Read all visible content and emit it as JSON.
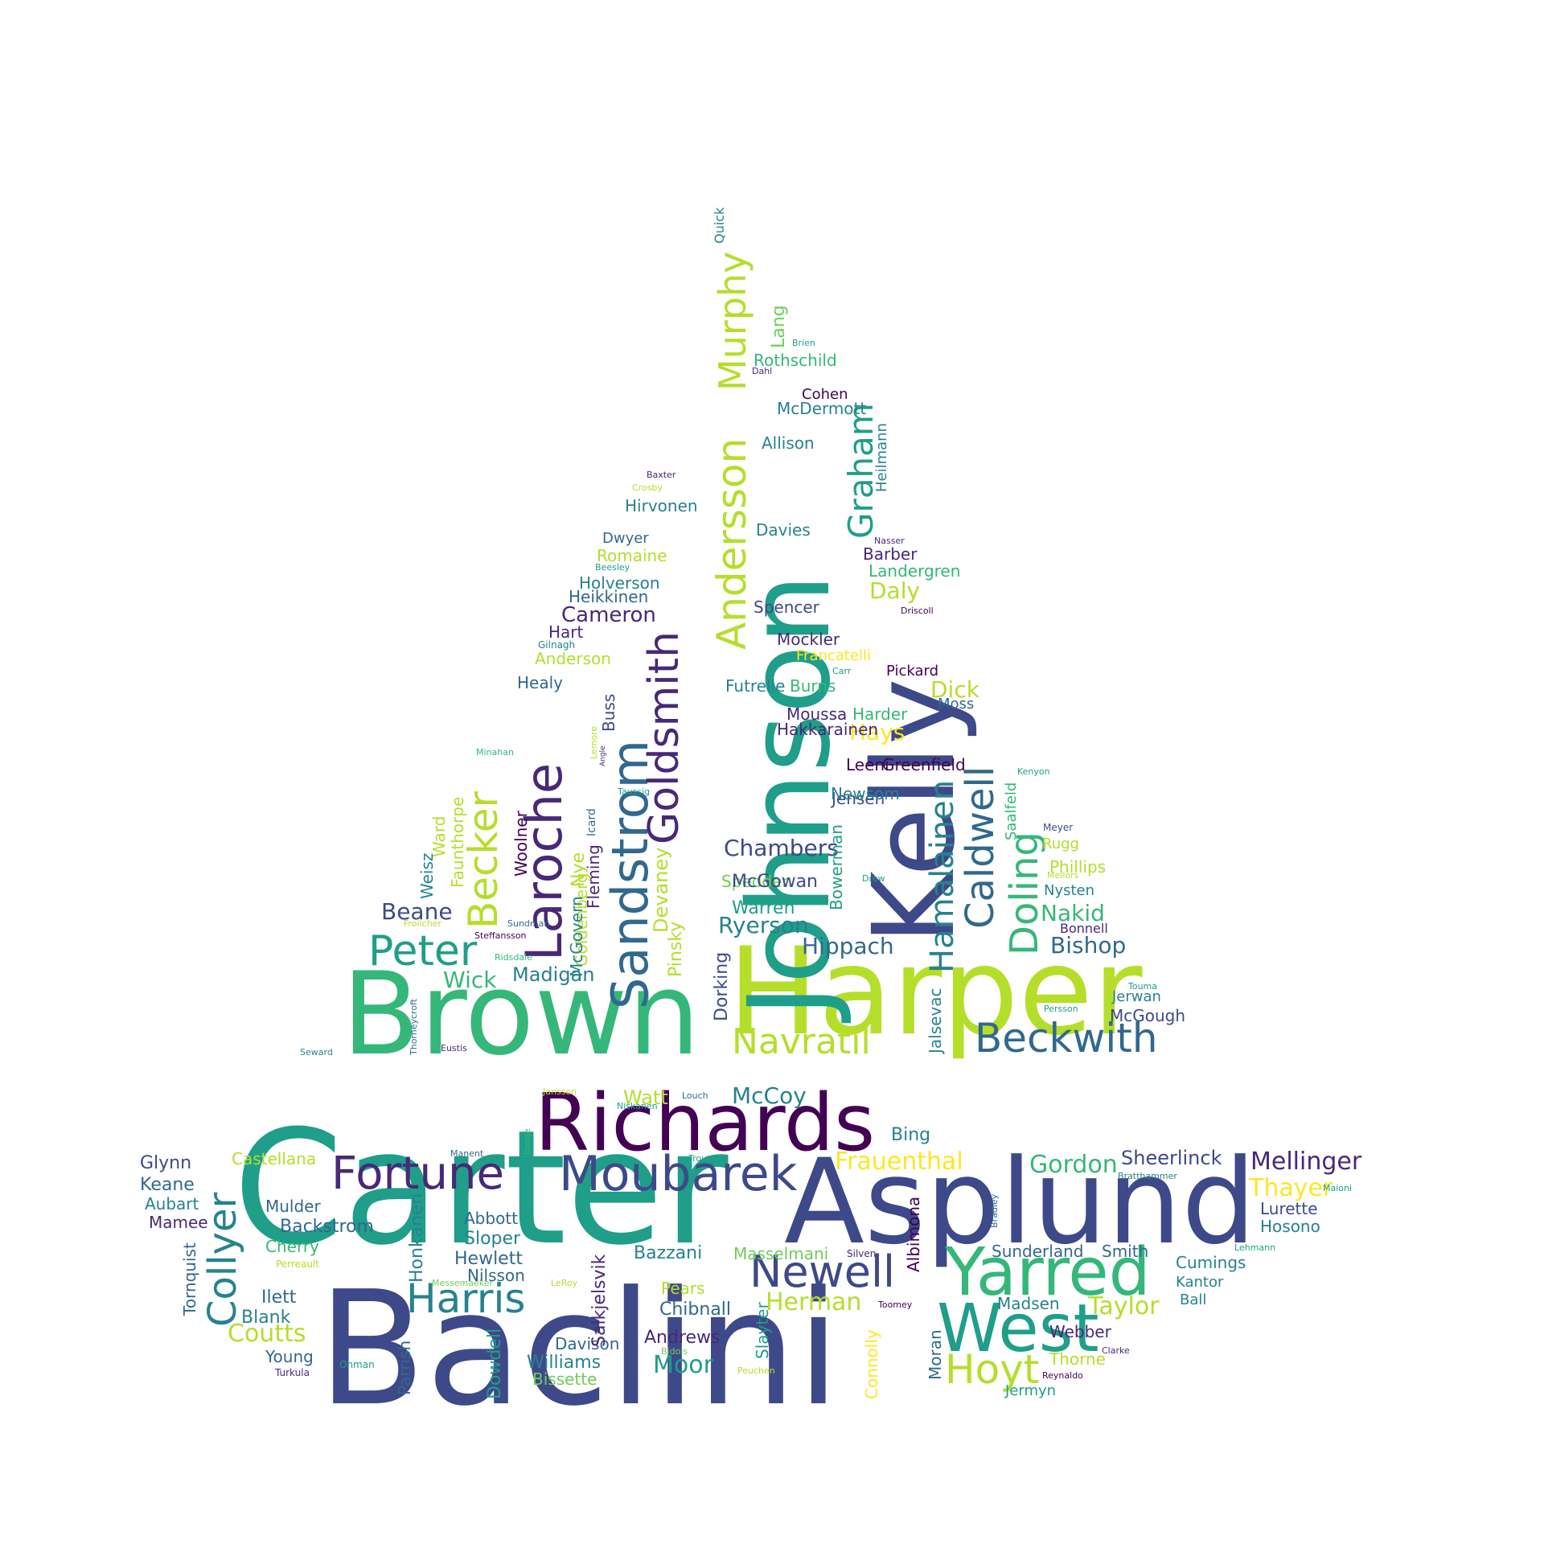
{
  "palette": [
    "#440154",
    "#482878",
    "#3e4989",
    "#31688e",
    "#26828e",
    "#1f9e89",
    "#35b779",
    "#6ece58",
    "#b5de2b",
    "#fde725"
  ],
  "words": [
    {
      "text": "Baclini",
      "c": 2
    },
    {
      "text": "Carter",
      "c": 5
    },
    {
      "text": "Asplund",
      "c": 2
    },
    {
      "text": "Harper",
      "c": 8
    },
    {
      "text": "Brown",
      "c": 6
    },
    {
      "text": "Johnson",
      "c": 5
    },
    {
      "text": "Kelly",
      "c": 2
    },
    {
      "text": "Richards",
      "c": 0
    },
    {
      "text": "Yarred",
      "c": 6
    },
    {
      "text": "West",
      "c": 5
    },
    {
      "text": "Moubarek",
      "c": 2
    },
    {
      "text": "Fortune",
      "c": 1
    },
    {
      "text": "Newell",
      "c": 2
    },
    {
      "text": "Harris",
      "c": 4
    },
    {
      "text": "Navratil",
      "c": 8
    },
    {
      "text": "Beckwith",
      "c": 3
    },
    {
      "text": "Hoyt",
      "c": 8
    },
    {
      "text": "Peter",
      "c": 5
    },
    {
      "text": "Sandstrom",
      "c": 3
    },
    {
      "text": "Laroche",
      "c": 1
    },
    {
      "text": "Goldsmith",
      "c": 1
    },
    {
      "text": "Becker",
      "c": 8
    },
    {
      "text": "Andersson",
      "c": 8
    },
    {
      "text": "Murphy",
      "c": 8
    },
    {
      "text": "Graham",
      "c": 5
    },
    {
      "text": "Caldwell",
      "c": 3
    },
    {
      "text": "Hamalainen",
      "c": 4
    },
    {
      "text": "Doling",
      "c": 6
    },
    {
      "text": "Collyer",
      "c": 4
    },
    {
      "text": "Mellinger",
      "c": 1
    },
    {
      "text": "Frauenthal",
      "c": 9
    },
    {
      "text": "Gordon",
      "c": 6
    },
    {
      "text": "Thayer",
      "c": 9
    },
    {
      "text": "Taylor",
      "c": 8
    },
    {
      "text": "Coutts",
      "c": 8
    },
    {
      "text": "McCoy",
      "c": 4
    },
    {
      "text": "Sheerlinck",
      "c": 2
    },
    {
      "text": "Chambers",
      "c": 2
    },
    {
      "text": "Hippach",
      "c": 3
    },
    {
      "text": "Bishop",
      "c": 3
    },
    {
      "text": "Nakid",
      "c": 6
    },
    {
      "text": "Herman",
      "c": 8
    },
    {
      "text": "Moor",
      "c": 5
    },
    {
      "text": "Ryerson",
      "c": 4
    },
    {
      "text": "Wick",
      "c": 6
    },
    {
      "text": "Beane",
      "c": 2
    },
    {
      "text": "Madigan",
      "c": 4
    },
    {
      "text": "Daly",
      "c": 8
    },
    {
      "text": "Dick",
      "c": 8
    },
    {
      "text": "Hays",
      "c": 9
    },
    {
      "text": "Watt",
      "c": 8
    },
    {
      "text": "Bing",
      "c": 4
    },
    {
      "text": "Glynn",
      "c": 2
    },
    {
      "text": "Keane",
      "c": 3
    },
    {
      "text": "Aubart",
      "c": 4
    },
    {
      "text": "Mamee",
      "c": 1
    },
    {
      "text": "Castellana",
      "c": 8
    },
    {
      "text": "Mulder",
      "c": 3
    },
    {
      "text": "Backstrom",
      "c": 3
    },
    {
      "text": "Cherry",
      "c": 6
    },
    {
      "text": "Perreault",
      "c": 8
    },
    {
      "text": "Ilett",
      "c": 3
    },
    {
      "text": "Blank",
      "c": 4
    },
    {
      "text": "Young",
      "c": 3
    },
    {
      "text": "Turkula",
      "c": 1
    },
    {
      "text": "Ohman",
      "c": 5
    },
    {
      "text": "Tornquist",
      "c": 3
    },
    {
      "text": "Honkanen",
      "c": 4
    },
    {
      "text": "Parrish",
      "c": 3
    },
    {
      "text": "Abbott",
      "c": 3
    },
    {
      "text": "Sloper",
      "c": 4
    },
    {
      "text": "Hewlett",
      "c": 3
    },
    {
      "text": "Nilsson",
      "c": 3
    },
    {
      "text": "Messemaeker",
      "c": 7
    },
    {
      "text": "LeRoy",
      "c": 8
    },
    {
      "text": "Dowdell",
      "c": 5
    },
    {
      "text": "Davison",
      "c": 3
    },
    {
      "text": "Williams",
      "c": 4
    },
    {
      "text": "Bissette",
      "c": 7
    },
    {
      "text": "Andrews",
      "c": 1
    },
    {
      "text": "Bidois",
      "c": 7
    },
    {
      "text": "Peuchen",
      "c": 8
    },
    {
      "text": "Salkjelsvik",
      "c": 1
    },
    {
      "text": "Bazzani",
      "c": 4
    },
    {
      "text": "Pears",
      "c": 8
    },
    {
      "text": "Chibnall",
      "c": 3
    },
    {
      "text": "Slayter",
      "c": 5
    },
    {
      "text": "Connolly",
      "c": 9
    },
    {
      "text": "Masselmani",
      "c": 7
    },
    {
      "text": "Silven",
      "c": 1
    },
    {
      "text": "Albimona",
      "c": 0
    },
    {
      "text": "Moran",
      "c": 3
    },
    {
      "text": "Sunderland",
      "c": 3
    },
    {
      "text": "Smith",
      "c": 3
    },
    {
      "text": "Cumings",
      "c": 4
    },
    {
      "text": "Kantor",
      "c": 4
    },
    {
      "text": "Ball",
      "c": 4
    },
    {
      "text": "Madsen",
      "c": 4
    },
    {
      "text": "Webber",
      "c": 1
    },
    {
      "text": "Thorne",
      "c": 8
    },
    {
      "text": "Jermyn",
      "c": 5
    },
    {
      "text": "Reynaldo",
      "c": 0
    },
    {
      "text": "Clarke",
      "c": 1
    },
    {
      "text": "Lehmann",
      "c": 5
    },
    {
      "text": "Lurette",
      "c": 2
    },
    {
      "text": "Hosono",
      "c": 4
    },
    {
      "text": "Maioni",
      "c": 5
    },
    {
      "text": "Bratthammer",
      "c": 4
    },
    {
      "text": "Bradley",
      "c": 3
    },
    {
      "text": "Toomey",
      "c": 0
    },
    {
      "text": "Dodge",
      "c": 6
    },
    {
      "text": "Trout",
      "c": 5
    },
    {
      "text": "Manent",
      "c": 3
    },
    {
      "text": "Jansson",
      "c": 8
    },
    {
      "text": "Louch",
      "c": 3
    },
    {
      "text": "Niskanen",
      "c": 5
    },
    {
      "text": "Seward",
      "c": 4
    },
    {
      "text": "Eustis",
      "c": 1
    },
    {
      "text": "Thorneycroft",
      "c": 3
    },
    {
      "text": "Ridsdale",
      "c": 6
    },
    {
      "text": "Steffansson",
      "c": 0
    },
    {
      "text": "Frolicher",
      "c": 8
    },
    {
      "text": "Sundman",
      "c": 3
    },
    {
      "text": "Weisz",
      "c": 4
    },
    {
      "text": "Ward",
      "c": 8
    },
    {
      "text": "Faunthorpe",
      "c": 8
    },
    {
      "text": "Minahan",
      "c": 6
    },
    {
      "text": "Woolner",
      "c": 0
    },
    {
      "text": "Fleming",
      "c": 1
    },
    {
      "text": "Goldenberg",
      "c": 8
    },
    {
      "text": "Nye",
      "c": 8
    },
    {
      "text": "McGovern",
      "c": 4
    },
    {
      "text": "Icard",
      "c": 3
    },
    {
      "text": "Buss",
      "c": 2
    },
    {
      "text": "Lemore",
      "c": 8
    },
    {
      "text": "Angle",
      "c": 1
    },
    {
      "text": "Taussig",
      "c": 5
    },
    {
      "text": "Devaney",
      "c": 8
    },
    {
      "text": "Pinsky",
      "c": 8
    },
    {
      "text": "Healy",
      "c": 3
    },
    {
      "text": "Anderson",
      "c": 8
    },
    {
      "text": "Gilnagh",
      "c": 4
    },
    {
      "text": "Hart",
      "c": 1
    },
    {
      "text": "Cameron",
      "c": 1
    },
    {
      "text": "Heikkinen",
      "c": 3
    },
    {
      "text": "Holverson",
      "c": 4
    },
    {
      "text": "Beesley",
      "c": 5
    },
    {
      "text": "Romaine",
      "c": 8
    },
    {
      "text": "Dwyer",
      "c": 3
    },
    {
      "text": "Hirvonen",
      "c": 4
    },
    {
      "text": "Crosby",
      "c": 8
    },
    {
      "text": "Baxter",
      "c": 1
    },
    {
      "text": "Quick",
      "c": 4
    },
    {
      "text": "Lang",
      "c": 7
    },
    {
      "text": "Brien",
      "c": 5
    },
    {
      "text": "Rothschild",
      "c": 6
    },
    {
      "text": "Dahl",
      "c": 1
    },
    {
      "text": "Cohen",
      "c": 0
    },
    {
      "text": "McDermott",
      "c": 4
    },
    {
      "text": "Allison",
      "c": 4
    },
    {
      "text": "Heilmann",
      "c": 4
    },
    {
      "text": "Davies",
      "c": 4
    },
    {
      "text": "Nasser",
      "c": 1
    },
    {
      "text": "Barber",
      "c": 1
    },
    {
      "text": "Landergren",
      "c": 6
    },
    {
      "text": "Driscoll",
      "c": 0
    },
    {
      "text": "Spencer",
      "c": 2
    },
    {
      "text": "Mockler",
      "c": 1
    },
    {
      "text": "Francatelli",
      "c": 9
    },
    {
      "text": "Pickard",
      "c": 0
    },
    {
      "text": "Carr",
      "c": 5
    },
    {
      "text": "Futrelle",
      "c": 4
    },
    {
      "text": "Burns",
      "c": 6
    },
    {
      "text": "Moussa",
      "c": 1
    },
    {
      "text": "Harder",
      "c": 6
    },
    {
      "text": "Moss",
      "c": 3
    },
    {
      "text": "Hakkarainen",
      "c": 1
    },
    {
      "text": "Leeni",
      "c": 0
    },
    {
      "text": "Greenfield",
      "c": 0
    },
    {
      "text": "Jensen",
      "c": 2
    },
    {
      "text": "Spedden",
      "c": 7
    },
    {
      "text": "Newsom",
      "c": 4
    },
    {
      "text": "Saalfeld",
      "c": 6
    },
    {
      "text": "Kenyon",
      "c": 5
    },
    {
      "text": "Meyer",
      "c": 2
    },
    {
      "text": "Rugg",
      "c": 8
    },
    {
      "text": "Phillips",
      "c": 8
    },
    {
      "text": "Drew",
      "c": 5
    },
    {
      "text": "Mellors",
      "c": 8
    },
    {
      "text": "Nysten",
      "c": 4
    },
    {
      "text": "McGowan",
      "c": 2
    },
    {
      "text": "Warren",
      "c": 5
    },
    {
      "text": "Bowerman",
      "c": 5
    },
    {
      "text": "Bonnell",
      "c": 1
    },
    {
      "text": "Dorking",
      "c": 2
    },
    {
      "text": "Jalsevac",
      "c": 4
    },
    {
      "text": "Touma",
      "c": 5
    },
    {
      "text": "Jerwan",
      "c": 4
    },
    {
      "text": "Persson",
      "c": 5
    },
    {
      "text": "McGough",
      "c": 2
    }
  ]
}
